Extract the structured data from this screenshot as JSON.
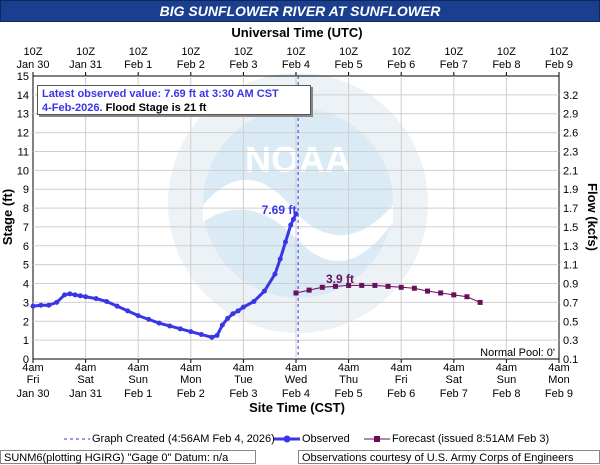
{
  "title": "BIG SUNFLOWER RIVER AT SUNFLOWER",
  "top_axis_title": "Universal Time (UTC)",
  "bottom_axis_title": "Site Time (CST)",
  "left_axis_title": "Stage (ft)",
  "right_axis_title": "Flow (kcfs)",
  "info": {
    "line1": "Latest observed value: 7.69 ft at 3:30 AM CST",
    "line2_date": "4-Feb-2026.",
    "line2_flood": "Flood Stage is 21 ft"
  },
  "normal_pool": "Normal Pool: 0'",
  "labels": {
    "observed_last": "7.69 ft",
    "forecast_peak": "3.9 ft"
  },
  "legend": {
    "created": "Graph Created (4:56AM Feb 4, 2026)",
    "observed": "Observed",
    "forecast": "Forecast (issued 8:51AM Feb 3)"
  },
  "footer": {
    "gauge": "SUNM6(plotting HGIRG) \"Gage 0\" Datum: n/a",
    "courtesy": "Observations courtesy of U.S. Army Corps of Engineers"
  },
  "colors": {
    "observed": "#3a36e6",
    "forecast": "#6a0f5a",
    "title_bg": "#1b3f8f",
    "created_line": "#3a36e6"
  },
  "watermark": "noaa-logo",
  "chart_data": {
    "type": "line",
    "x_unit": "days since Jan 30 4am CST",
    "xlim": [
      0,
      10
    ],
    "ylim": [
      0,
      15
    ],
    "y2lim": [
      0.1,
      3.2
    ],
    "y_ticks": [
      0,
      1,
      2,
      3,
      4,
      5,
      6,
      7,
      8,
      9,
      10,
      11,
      12,
      13,
      14,
      15
    ],
    "y2_ticks": [
      "0.1",
      "0.3",
      "0.5",
      "0.7",
      "0.9",
      "1.1",
      "1.3",
      "1.5",
      "1.7",
      "1.9",
      "2.1",
      "2.3",
      "2.6",
      "2.9",
      "3.2"
    ],
    "bottom_ticks": [
      {
        "top": "4am",
        "mid": "Fri",
        "bot": "Jan 30"
      },
      {
        "top": "4am",
        "mid": "Sat",
        "bot": "Jan 31"
      },
      {
        "top": "4am",
        "mid": "Sun",
        "bot": "Feb 1"
      },
      {
        "top": "4am",
        "mid": "Mon",
        "bot": "Feb 2"
      },
      {
        "top": "4am",
        "mid": "Tue",
        "bot": "Feb 3"
      },
      {
        "top": "4am",
        "mid": "Wed",
        "bot": "Feb 4"
      },
      {
        "top": "4am",
        "mid": "Thu",
        "bot": "Feb 5"
      },
      {
        "top": "4am",
        "mid": "Fri",
        "bot": "Feb 6"
      },
      {
        "top": "4am",
        "mid": "Sat",
        "bot": "Feb 7"
      },
      {
        "top": "4am",
        "mid": "Sun",
        "bot": "Feb 8"
      },
      {
        "top": "4am",
        "mid": "Mon",
        "bot": "Feb 9"
      }
    ],
    "top_ticks": [
      {
        "top": "10Z",
        "bot": "Jan 30"
      },
      {
        "top": "10Z",
        "bot": "Jan 31"
      },
      {
        "top": "10Z",
        "bot": "Feb  1"
      },
      {
        "top": "10Z",
        "bot": "Feb  2"
      },
      {
        "top": "10Z",
        "bot": "Feb  3"
      },
      {
        "top": "10Z",
        "bot": "Feb  4"
      },
      {
        "top": "10Z",
        "bot": "Feb  5"
      },
      {
        "top": "10Z",
        "bot": "Feb  6"
      },
      {
        "top": "10Z",
        "bot": "Feb  7"
      },
      {
        "top": "10Z",
        "bot": "Feb  8"
      },
      {
        "top": "10Z",
        "bot": "Feb  9"
      }
    ],
    "created_x": 5.04,
    "series": [
      {
        "name": "Observed",
        "x": [
          0,
          0.15,
          0.3,
          0.45,
          0.6,
          0.7,
          0.8,
          0.9,
          1.0,
          1.2,
          1.4,
          1.6,
          1.8,
          2.0,
          2.2,
          2.4,
          2.6,
          2.8,
          3.0,
          3.2,
          3.4,
          3.5,
          3.6,
          3.7,
          3.8,
          3.9,
          4.0,
          4.2,
          4.4,
          4.6,
          4.7,
          4.8,
          4.9,
          4.95,
          5.0
        ],
        "y": [
          2.8,
          2.85,
          2.85,
          3.0,
          3.4,
          3.45,
          3.4,
          3.35,
          3.3,
          3.2,
          3.05,
          2.8,
          2.55,
          2.3,
          2.1,
          1.9,
          1.75,
          1.6,
          1.45,
          1.3,
          1.15,
          1.25,
          1.8,
          2.15,
          2.4,
          2.55,
          2.75,
          3.05,
          3.6,
          4.5,
          5.3,
          6.2,
          7.1,
          7.4,
          7.69
        ]
      },
      {
        "name": "Forecast",
        "x": [
          5.0,
          5.25,
          5.5,
          5.75,
          6.0,
          6.25,
          6.5,
          6.75,
          7.0,
          7.25,
          7.5,
          7.75,
          8.0,
          8.25,
          8.5
        ],
        "y": [
          3.5,
          3.65,
          3.8,
          3.85,
          3.9,
          3.9,
          3.9,
          3.85,
          3.8,
          3.75,
          3.6,
          3.5,
          3.4,
          3.3,
          3.0
        ]
      }
    ]
  }
}
